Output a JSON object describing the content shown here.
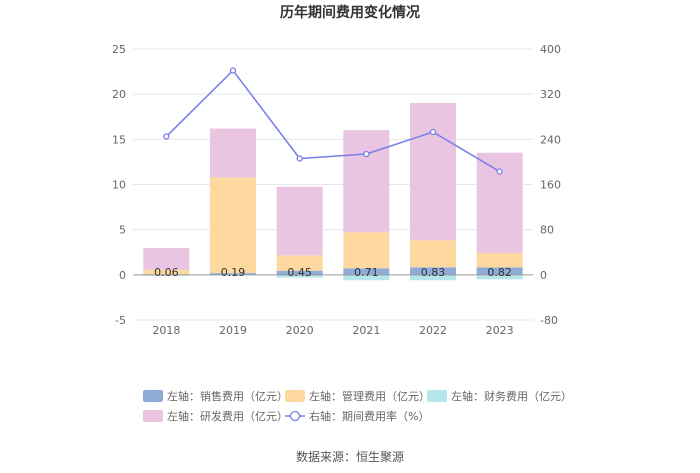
{
  "chart_data": {
    "type": "bar",
    "title": "历年期间费用变化情况",
    "categories": [
      "2018",
      "2019",
      "2020",
      "2021",
      "2022",
      "2023"
    ],
    "series": [
      {
        "name": "左轴：销售费用（亿元）",
        "axis": "left",
        "color": "#8eacd8",
        "values": [
          0.06,
          0.19,
          0.45,
          0.71,
          0.83,
          0.82
        ]
      },
      {
        "name": "左轴：管理费用（亿元）",
        "axis": "left",
        "color": "#fdd9a0",
        "values": [
          0.5,
          10.6,
          1.7,
          4.0,
          3.0,
          1.6
        ]
      },
      {
        "name": "左轴：财务费用（亿元）",
        "axis": "left",
        "color": "#b5e6ea",
        "values": [
          -0.1,
          -0.05,
          -0.3,
          -0.6,
          -0.6,
          -0.5
        ]
      },
      {
        "name": "左轴：研发费用（亿元）",
        "axis": "left",
        "color": "#eac5e2",
        "values": [
          2.4,
          5.4,
          7.6,
          11.3,
          15.2,
          11.1
        ]
      },
      {
        "name": "右轴：期间费用率（%）",
        "axis": "right",
        "color": "#7b80e8",
        "type": "line",
        "values": [
          245,
          362,
          206,
          214,
          253,
          183
        ]
      }
    ],
    "data_labels": [
      "0.06",
      "0.19",
      "0.45",
      "0.71",
      "0.83",
      "0.82"
    ],
    "left_axis": {
      "min": -5,
      "max": 25,
      "ticks": [
        "25",
        "20",
        "15",
        "10",
        "5",
        "0",
        "-5"
      ]
    },
    "right_axis": {
      "min": -80,
      "max": 400,
      "ticks": [
        "400",
        "320",
        "240",
        "160",
        "80",
        "0",
        "-80"
      ]
    },
    "grid": true,
    "legend_position": "bottom"
  },
  "source_text": "数据来源：恒生聚源"
}
